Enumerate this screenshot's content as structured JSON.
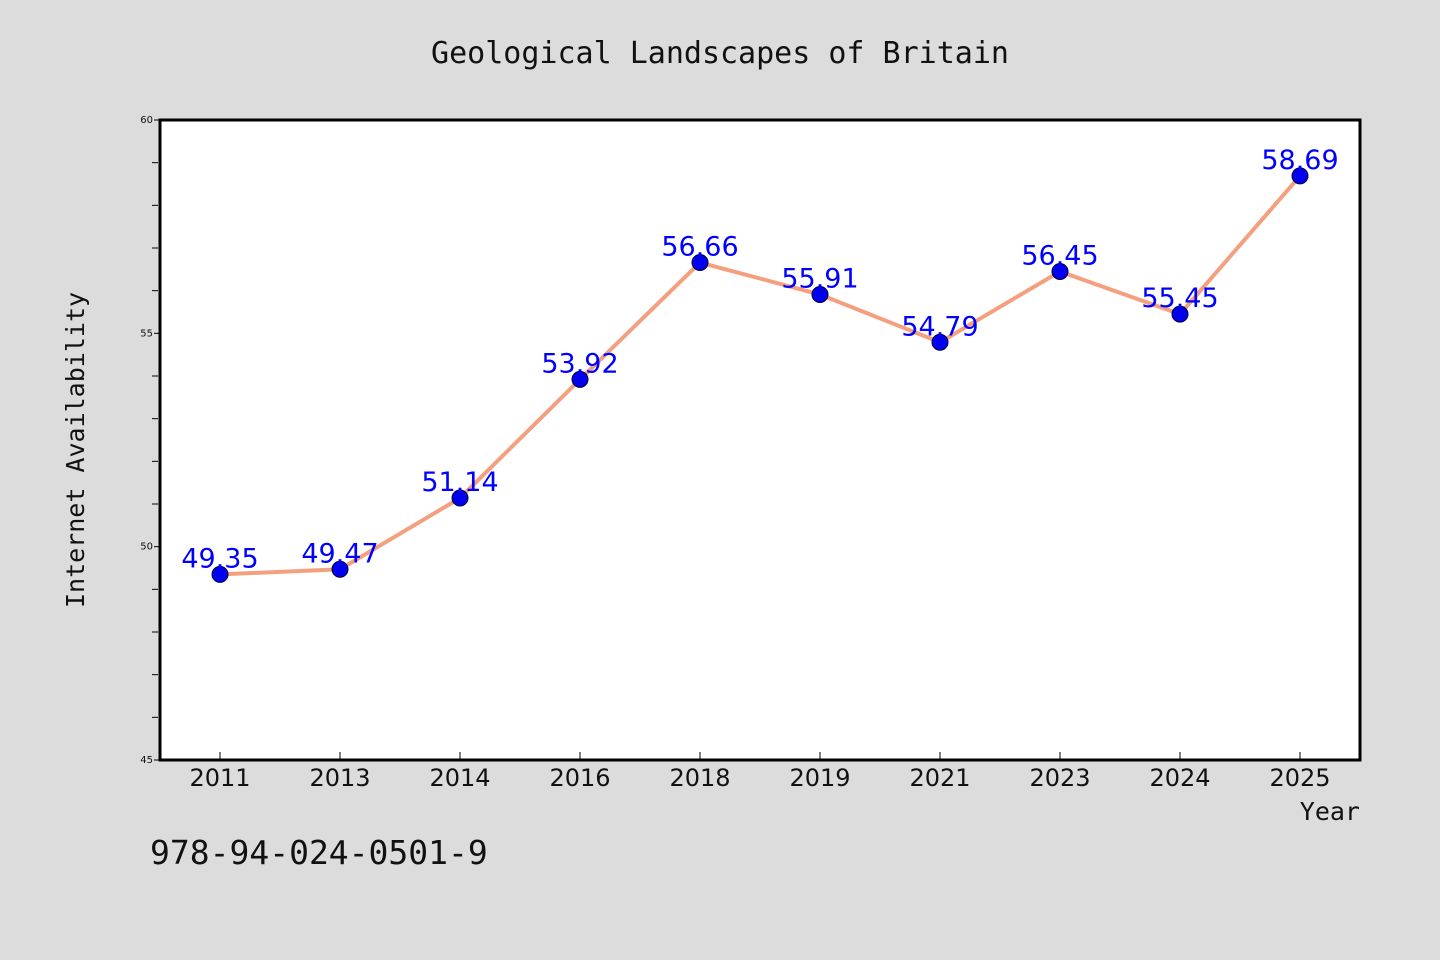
{
  "chart_data": {
    "type": "line",
    "title": "Geological Landscapes of Britain",
    "xlabel": "Year",
    "ylabel": "Internet Availability",
    "categories": [
      "2011",
      "2013",
      "2014",
      "2016",
      "2018",
      "2019",
      "2021",
      "2023",
      "2024",
      "2025"
    ],
    "series": [
      {
        "values": [
          49.35,
          49.47,
          51.14,
          53.92,
          56.66,
          55.91,
          54.79,
          56.45,
          55.45,
          58.69
        ],
        "data_labels": [
          "49.35",
          "49.47",
          "51.14",
          "53.92",
          "56.66",
          "55.91",
          "54.79",
          "56.45",
          "55.45",
          "58.69"
        ]
      }
    ],
    "ylim": [
      45,
      60
    ],
    "yticks": [
      45,
      50,
      55,
      60
    ],
    "ytick_labels": [
      "45",
      "50",
      "55",
      "60"
    ],
    "y_minor_step": 1,
    "grid": false,
    "legend": "none"
  },
  "footer_text": "978-94-024-0501-9",
  "colors": {
    "background": "#dcdcdc",
    "plot_area": "#ffffff",
    "line": "#f4a07e",
    "marker": "#0000ee",
    "data_label": "#0000ff",
    "axis": "#000000"
  }
}
